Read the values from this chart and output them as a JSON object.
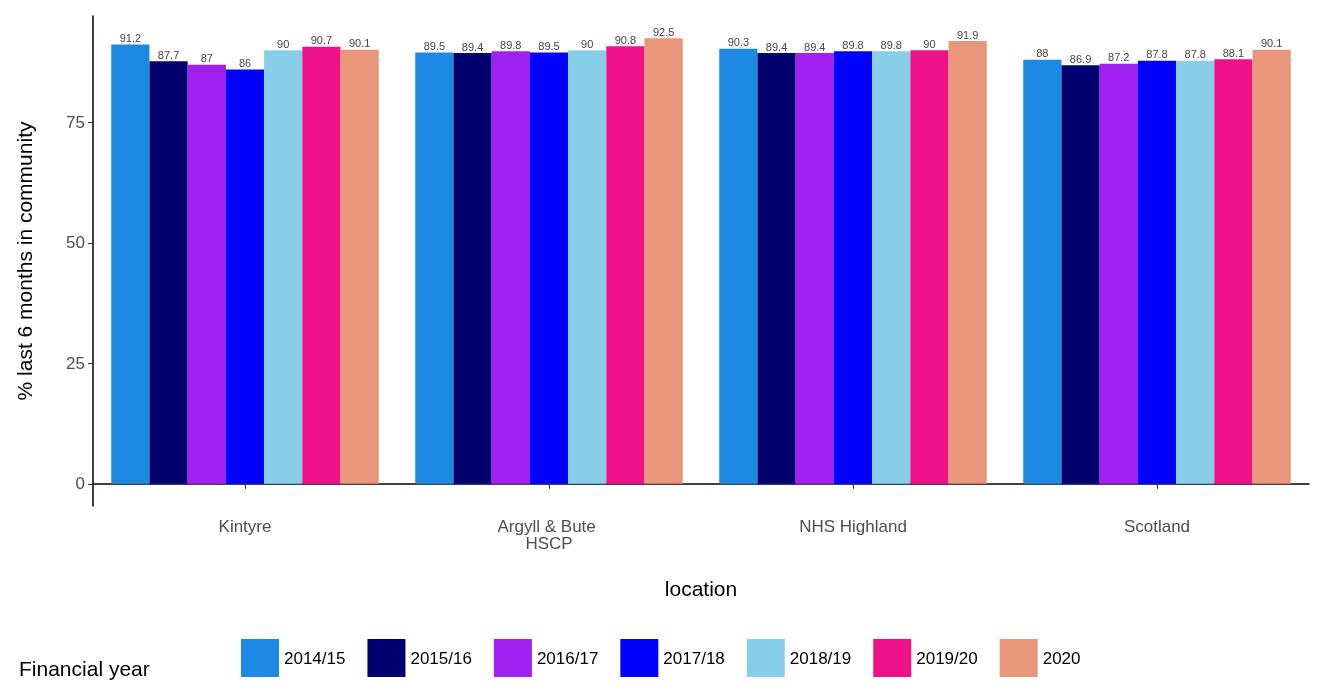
{
  "chart_data": {
    "type": "bar",
    "xlabel": "location",
    "ylabel": "% last 6 months in community",
    "legend_title": "Financial year",
    "categories": [
      "Kintyre",
      "Argyll & Bute HSCP",
      "NHS Highland",
      "Scotland"
    ],
    "series": [
      {
        "name": "2014/15",
        "color": "#1e88e5",
        "values": [
          91.2,
          89.5,
          90.3,
          88
        ]
      },
      {
        "name": "2015/16",
        "color": "#000070",
        "values": [
          87.7,
          89.4,
          89.4,
          86.9
        ]
      },
      {
        "name": "2016/17",
        "color": "#a020f0",
        "values": [
          87,
          89.8,
          89.4,
          87.2
        ]
      },
      {
        "name": "2017/18",
        "color": "#0000ff",
        "values": [
          86,
          89.5,
          89.8,
          87.8
        ]
      },
      {
        "name": "2018/19",
        "color": "#87ceeb",
        "values": [
          90,
          90,
          89.8,
          87.8
        ]
      },
      {
        "name": "2019/20",
        "color": "#ee1289",
        "values": [
          90.7,
          90.8,
          90,
          88.1
        ]
      },
      {
        "name": "2020",
        "color": "#e9967a",
        "values": [
          90.1,
          92.5,
          91.9,
          90.1
        ]
      }
    ],
    "ylim": [
      -4.6,
      97.1
    ],
    "yticks": [
      0,
      25,
      50,
      75
    ],
    "grid": false,
    "legend": "bottom",
    "data_labels": true
  }
}
